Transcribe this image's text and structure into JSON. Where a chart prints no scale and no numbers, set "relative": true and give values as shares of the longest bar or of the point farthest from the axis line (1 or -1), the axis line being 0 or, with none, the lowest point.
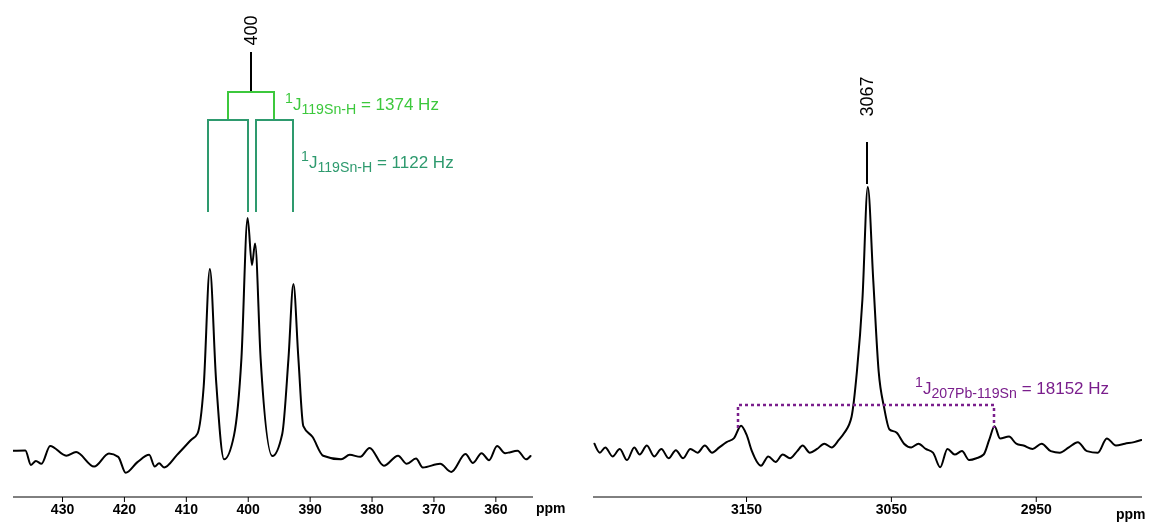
{
  "chart_data": [
    {
      "type": "line",
      "relative": true,
      "xlabel": "ppm",
      "xlim": [
        438,
        354
      ],
      "xticks": [
        430,
        420,
        410,
        400,
        390,
        380,
        370,
        360
      ],
      "x": [
        438,
        436.0,
        435.1,
        434.3,
        433.4,
        432.0,
        429.4,
        427.8,
        424.9,
        422.5,
        421.0,
        419.8,
        417.9,
        416.0,
        415.1,
        414.4,
        413.6,
        411.5,
        409.2,
        408.2,
        407.2,
        406.2,
        405.2,
        403.9,
        402.3,
        401.1,
        400.1,
        399.4,
        398.9,
        398.0,
        396.1,
        394.5,
        393.5,
        392.7,
        391.9,
        391.1,
        389.6,
        387.9,
        385.0,
        383.6,
        381.9,
        380.4,
        378.1,
        375.8,
        374.4,
        372.9,
        371.8,
        369.0,
        367.2,
        364.9,
        363.7,
        362.3,
        361.1,
        359.8,
        358.5,
        356.5,
        355.1,
        354.4
      ],
      "series": [
        {
          "color": "#000000",
          "values": [
            0.166,
            0.167,
            0.115,
            0.129,
            0.119,
            0.183,
            0.148,
            0.161,
            0.109,
            0.156,
            0.144,
            0.087,
            0.125,
            0.151,
            0.109,
            0.121,
            0.106,
            0.151,
            0.205,
            0.227,
            0.395,
            0.817,
            0.42,
            0.135,
            0.221,
            0.497,
            1.0,
            0.831,
            0.909,
            0.497,
            0.147,
            0.227,
            0.497,
            0.763,
            0.497,
            0.254,
            0.215,
            0.148,
            0.135,
            0.151,
            0.144,
            0.176,
            0.112,
            0.148,
            0.119,
            0.138,
            0.106,
            0.119,
            0.09,
            0.154,
            0.122,
            0.157,
            0.132,
            0.183,
            0.157,
            0.166,
            0.135,
            0.147
          ]
        }
      ],
      "annotations": [
        "400",
        "$^{1}$J$_{119Sn-H}$ = 1374 Hz",
        "$^{1}$J$_{119Sn-H}$ = 1122 Hz"
      ]
    },
    {
      "type": "line",
      "relative": true,
      "xlabel": "ppm",
      "xlim": [
        3256,
        2877
      ],
      "xticks": [
        3150,
        3050,
        2950
      ],
      "x": [
        3255,
        3251.3,
        3247.5,
        3242.5,
        3237.5,
        3232.5,
        3227.5,
        3223.8,
        3218.8,
        3213.8,
        3208.8,
        3203.8,
        3198.8,
        3193.8,
        3188.8,
        3183.8,
        3178.8,
        3173.8,
        3168.8,
        3163.8,
        3158.8,
        3153.8,
        3150,
        3146.3,
        3140,
        3135,
        3130,
        3125,
        3120,
        3115,
        3111.3,
        3106.3,
        3101.3,
        3096.3,
        3091.3,
        3086.3,
        3082.5,
        3077.5,
        3073.8,
        3070,
        3066.3,
        3062.5,
        3058.8,
        3055,
        3051.3,
        3046.3,
        3041.3,
        3036.3,
        3031.3,
        3026.3,
        3021.3,
        3016.3,
        3011.3,
        3006.3,
        3001.3,
        2996.3,
        2991.3,
        2986.3,
        2982.5,
        2978.8,
        2975,
        2968.8,
        2963.8,
        2958.8,
        2952.5,
        2946.3,
        2940,
        2933.8,
        2927.5,
        2921.3,
        2915,
        2907.5,
        2901.3,
        2895,
        2888.8,
        2882.5,
        2877.5
      ],
      "series": [
        {
          "color": "#000000",
          "values": [
            0.172,
            0.143,
            0.16,
            0.131,
            0.155,
            0.119,
            0.16,
            0.137,
            0.166,
            0.131,
            0.155,
            0.125,
            0.151,
            0.125,
            0.155,
            0.143,
            0.166,
            0.143,
            0.16,
            0.177,
            0.189,
            0.23,
            0.201,
            0.148,
            0.101,
            0.131,
            0.113,
            0.137,
            0.125,
            0.148,
            0.166,
            0.143,
            0.155,
            0.172,
            0.16,
            0.184,
            0.207,
            0.259,
            0.405,
            0.638,
            1.0,
            0.697,
            0.405,
            0.288,
            0.218,
            0.207,
            0.172,
            0.16,
            0.172,
            0.155,
            0.143,
            0.096,
            0.155,
            0.137,
            0.148,
            0.119,
            0.125,
            0.137,
            0.184,
            0.228,
            0.189,
            0.195,
            0.172,
            0.166,
            0.155,
            0.172,
            0.148,
            0.143,
            0.16,
            0.177,
            0.148,
            0.143,
            0.189,
            0.166,
            0.172,
            0.177,
            0.184
          ]
        }
      ],
      "annotations": [
        "3067",
        "$^{1}$J$_{207Pb-119Sn}$ = 18152 Hz"
      ]
    }
  ]
}
